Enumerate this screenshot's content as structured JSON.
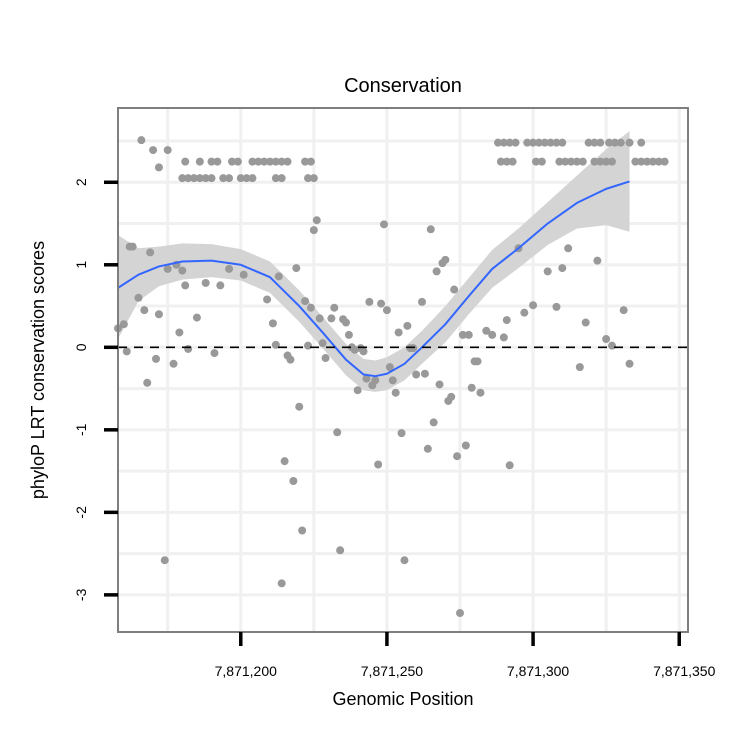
{
  "chart_data": {
    "type": "scatter",
    "title": "Conservation",
    "xlabel": "Genomic Position",
    "ylabel": "phyloP LRT conservation scores",
    "xlim": [
      7871158,
      7871353
    ],
    "ylim": [
      -3.45,
      2.9
    ],
    "x_ticks": [
      {
        "value": 7871200,
        "label": "7,871,200"
      },
      {
        "value": 7871250,
        "label": "7,871,250"
      },
      {
        "value": 7871300,
        "label": "7,871,300"
      },
      {
        "value": 7871350,
        "label": "7,871,350"
      }
    ],
    "y_ticks": [
      {
        "value": 2,
        "label": "2"
      },
      {
        "value": 1,
        "label": "1"
      },
      {
        "value": 0,
        "label": "0"
      },
      {
        "value": -1,
        "label": "-1"
      },
      {
        "value": -2,
        "label": "-2"
      },
      {
        "value": -3,
        "label": "-3"
      }
    ],
    "reference_line": {
      "y": 0,
      "style": "dashed"
    },
    "grid": true,
    "colors": {
      "points": "#999999",
      "smooth": "#3366FF",
      "band": "#d4d4d4",
      "grid": "#f0f0f0",
      "border": "#7f7f7f"
    },
    "points": [
      [
        7871166,
        2.51
      ],
      [
        7871170,
        2.39
      ],
      [
        7871175,
        2.39
      ],
      [
        7871172,
        2.18
      ],
      [
        7871180,
        2.05
      ],
      [
        7871182,
        2.05
      ],
      [
        7871184,
        2.05
      ],
      [
        7871186,
        2.05
      ],
      [
        7871188,
        2.05
      ],
      [
        7871190,
        2.05
      ],
      [
        7871194,
        2.05
      ],
      [
        7871196,
        2.05
      ],
      [
        7871200,
        2.05
      ],
      [
        7871202,
        2.05
      ],
      [
        7871204,
        2.05
      ],
      [
        7871212,
        2.05
      ],
      [
        7871214,
        2.05
      ],
      [
        7871223,
        2.05
      ],
      [
        7871225,
        2.05
      ],
      [
        7871181,
        2.25
      ],
      [
        7871186,
        2.25
      ],
      [
        7871190,
        2.25
      ],
      [
        7871192,
        2.25
      ],
      [
        7871197,
        2.25
      ],
      [
        7871199,
        2.25
      ],
      [
        7871204,
        2.25
      ],
      [
        7871206,
        2.25
      ],
      [
        7871208,
        2.25
      ],
      [
        7871210,
        2.25
      ],
      [
        7871212,
        2.25
      ],
      [
        7871214,
        2.25
      ],
      [
        7871216,
        2.25
      ],
      [
        7871222,
        2.25
      ],
      [
        7871224,
        2.25
      ],
      [
        7871288,
        2.48
      ],
      [
        7871290,
        2.48
      ],
      [
        7871292,
        2.48
      ],
      [
        7871294,
        2.48
      ],
      [
        7871298,
        2.48
      ],
      [
        7871300,
        2.48
      ],
      [
        7871302,
        2.48
      ],
      [
        7871304,
        2.48
      ],
      [
        7871306,
        2.48
      ],
      [
        7871308,
        2.48
      ],
      [
        7871310,
        2.48
      ],
      [
        7871319,
        2.48
      ],
      [
        7871321,
        2.48
      ],
      [
        7871323,
        2.48
      ],
      [
        7871326,
        2.48
      ],
      [
        7871328,
        2.48
      ],
      [
        7871330,
        2.48
      ],
      [
        7871333,
        2.48
      ],
      [
        7871337,
        2.48
      ],
      [
        7871289,
        2.25
      ],
      [
        7871291,
        2.25
      ],
      [
        7871293,
        2.25
      ],
      [
        7871301,
        2.25
      ],
      [
        7871303,
        2.25
      ],
      [
        7871309,
        2.25
      ],
      [
        7871311,
        2.25
      ],
      [
        7871313,
        2.25
      ],
      [
        7871315,
        2.25
      ],
      [
        7871317,
        2.25
      ],
      [
        7871321,
        2.25
      ],
      [
        7871323,
        2.25
      ],
      [
        7871325,
        2.25
      ],
      [
        7871327,
        2.25
      ],
      [
        7871335,
        2.25
      ],
      [
        7871337,
        2.25
      ],
      [
        7871339,
        2.25
      ],
      [
        7871341,
        2.25
      ],
      [
        7871343,
        2.25
      ],
      [
        7871345,
        2.25
      ],
      [
        7871158,
        0.23
      ],
      [
        7871160,
        0.28
      ],
      [
        7871161,
        -0.05
      ],
      [
        7871162,
        1.22
      ],
      [
        7871163,
        1.22
      ],
      [
        7871165,
        0.6
      ],
      [
        7871167,
        0.45
      ],
      [
        7871168,
        -0.43
      ],
      [
        7871169,
        1.15
      ],
      [
        7871171,
        -0.14
      ],
      [
        7871172,
        0.4
      ],
      [
        7871174,
        -2.58
      ],
      [
        7871175,
        0.95
      ],
      [
        7871177,
        -0.2
      ],
      [
        7871178,
        1.0
      ],
      [
        7871179,
        0.18
      ],
      [
        7871180,
        0.93
      ],
      [
        7871181,
        0.75
      ],
      [
        7871182,
        -0.02
      ],
      [
        7871185,
        0.36
      ],
      [
        7871188,
        0.78
      ],
      [
        7871191,
        -0.07
      ],
      [
        7871193,
        0.75
      ],
      [
        7871196,
        0.95
      ],
      [
        7871201,
        0.88
      ],
      [
        7871209,
        0.58
      ],
      [
        7871211,
        0.29
      ],
      [
        7871212,
        0.03
      ],
      [
        7871213,
        0.86
      ],
      [
        7871214,
        -2.86
      ],
      [
        7871215,
        -1.38
      ],
      [
        7871216,
        -0.1
      ],
      [
        7871217,
        -0.15
      ],
      [
        7871218,
        -1.62
      ],
      [
        7871219,
        0.96
      ],
      [
        7871220,
        -0.72
      ],
      [
        7871221,
        -2.22
      ],
      [
        7871222,
        0.56
      ],
      [
        7871223,
        0.02
      ],
      [
        7871224,
        0.48
      ],
      [
        7871225,
        1.42
      ],
      [
        7871226,
        1.54
      ],
      [
        7871227,
        0.35
      ],
      [
        7871228,
        0.05
      ],
      [
        7871229,
        -0.13
      ],
      [
        7871231,
        0.35
      ],
      [
        7871232,
        0.48
      ],
      [
        7871233,
        -1.03
      ],
      [
        7871234,
        -2.46
      ],
      [
        7871235,
        0.34
      ],
      [
        7871236,
        0.3
      ],
      [
        7871237,
        0.15
      ],
      [
        7871238,
        0.0
      ],
      [
        7871239,
        -0.03
      ],
      [
        7871240,
        -0.52
      ],
      [
        7871241,
        -0.01
      ],
      [
        7871242,
        -0.05
      ],
      [
        7871243,
        -0.38
      ],
      [
        7871244,
        0.55
      ],
      [
        7871245,
        -0.46
      ],
      [
        7871246,
        -0.4
      ],
      [
        7871247,
        -1.42
      ],
      [
        7871248,
        0.53
      ],
      [
        7871249,
        1.49
      ],
      [
        7871250,
        0.45
      ],
      [
        7871251,
        -0.24
      ],
      [
        7871252,
        -0.4
      ],
      [
        7871253,
        -0.55
      ],
      [
        7871254,
        0.18
      ],
      [
        7871255,
        -1.04
      ],
      [
        7871256,
        -2.58
      ],
      [
        7871257,
        0.26
      ],
      [
        7871258,
        -0.01
      ],
      [
        7871259,
        -0.01
      ],
      [
        7871260,
        -0.33
      ],
      [
        7871262,
        0.55
      ],
      [
        7871263,
        -0.32
      ],
      [
        7871264,
        -1.23
      ],
      [
        7871265,
        1.43
      ],
      [
        7871266,
        -0.91
      ],
      [
        7871267,
        0.92
      ],
      [
        7871268,
        -0.45
      ],
      [
        7871269,
        1.02
      ],
      [
        7871270,
        1.06
      ],
      [
        7871271,
        -0.65
      ],
      [
        7871272,
        -0.6
      ],
      [
        7871273,
        0.7
      ],
      [
        7871274,
        -1.32
      ],
      [
        7871275,
        -3.22
      ],
      [
        7871276,
        0.15
      ],
      [
        7871277,
        -1.19
      ],
      [
        7871278,
        0.15
      ],
      [
        7871279,
        -0.49
      ],
      [
        7871280,
        -0.17
      ],
      [
        7871281,
        -0.17
      ],
      [
        7871282,
        -0.55
      ],
      [
        7871284,
        0.2
      ],
      [
        7871286,
        0.15
      ],
      [
        7871290,
        0.12
      ],
      [
        7871291,
        0.33
      ],
      [
        7871292,
        -1.43
      ],
      [
        7871295,
        1.2
      ],
      [
        7871297,
        0.42
      ],
      [
        7871300,
        0.51
      ],
      [
        7871305,
        0.92
      ],
      [
        7871308,
        0.49
      ],
      [
        7871310,
        0.96
      ],
      [
        7871312,
        1.2
      ],
      [
        7871316,
        -0.24
      ],
      [
        7871318,
        0.3
      ],
      [
        7871322,
        1.05
      ],
      [
        7871325,
        0.1
      ],
      [
        7871327,
        0.02
      ],
      [
        7871331,
        0.45
      ],
      [
        7871333,
        -0.2
      ]
    ],
    "smooth_line": [
      [
        7871158,
        0.72
      ],
      [
        7871165,
        0.88
      ],
      [
        7871172,
        0.98
      ],
      [
        7871180,
        1.04
      ],
      [
        7871190,
        1.05
      ],
      [
        7871200,
        1.0
      ],
      [
        7871210,
        0.85
      ],
      [
        7871220,
        0.5
      ],
      [
        7871228,
        0.18
      ],
      [
        7871236,
        -0.15
      ],
      [
        7871242,
        -0.33
      ],
      [
        7871246,
        -0.35
      ],
      [
        7871250,
        -0.32
      ],
      [
        7871256,
        -0.2
      ],
      [
        7871262,
        0.0
      ],
      [
        7871270,
        0.28
      ],
      [
        7871278,
        0.62
      ],
      [
        7871286,
        0.95
      ],
      [
        7871295,
        1.2
      ],
      [
        7871305,
        1.5
      ],
      [
        7871315,
        1.75
      ],
      [
        7871325,
        1.92
      ],
      [
        7871333,
        2.01
      ]
    ],
    "confidence_band": {
      "upper": [
        [
          7871158,
          1.36
        ],
        [
          7871165,
          1.2
        ],
        [
          7871172,
          1.22
        ],
        [
          7871180,
          1.26
        ],
        [
          7871190,
          1.25
        ],
        [
          7871200,
          1.19
        ],
        [
          7871210,
          1.04
        ],
        [
          7871220,
          0.69
        ],
        [
          7871228,
          0.37
        ],
        [
          7871236,
          0.04
        ],
        [
          7871242,
          -0.14
        ],
        [
          7871246,
          -0.16
        ],
        [
          7871250,
          -0.12
        ],
        [
          7871256,
          0.0
        ],
        [
          7871262,
          0.2
        ],
        [
          7871270,
          0.5
        ],
        [
          7871278,
          0.84
        ],
        [
          7871286,
          1.18
        ],
        [
          7871295,
          1.44
        ],
        [
          7871305,
          1.76
        ],
        [
          7871315,
          2.08
        ],
        [
          7871325,
          2.4
        ],
        [
          7871333,
          2.62
        ]
      ],
      "lower": [
        [
          7871158,
          0.1
        ],
        [
          7871165,
          0.56
        ],
        [
          7871172,
          0.74
        ],
        [
          7871180,
          0.82
        ],
        [
          7871190,
          0.85
        ],
        [
          7871200,
          0.81
        ],
        [
          7871210,
          0.66
        ],
        [
          7871220,
          0.31
        ],
        [
          7871228,
          -0.01
        ],
        [
          7871236,
          -0.34
        ],
        [
          7871242,
          -0.52
        ],
        [
          7871246,
          -0.54
        ],
        [
          7871250,
          -0.52
        ],
        [
          7871256,
          -0.4
        ],
        [
          7871262,
          -0.2
        ],
        [
          7871270,
          0.06
        ],
        [
          7871278,
          0.4
        ],
        [
          7871286,
          0.72
        ],
        [
          7871295,
          0.96
        ],
        [
          7871305,
          1.24
        ],
        [
          7871315,
          1.44
        ],
        [
          7871325,
          1.48
        ],
        [
          7871333,
          1.4
        ]
      ]
    }
  }
}
